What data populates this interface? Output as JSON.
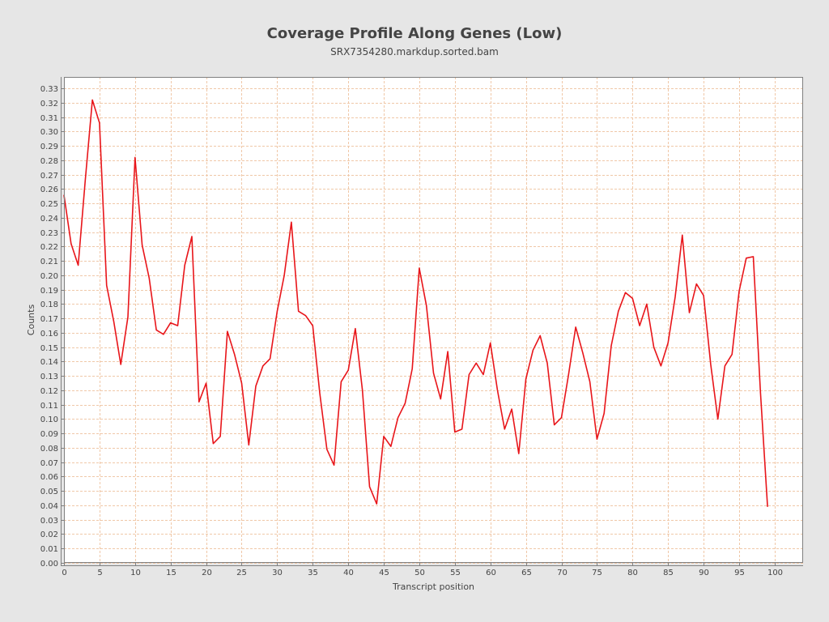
{
  "chart_data": {
    "type": "line",
    "title": "Coverage Profile Along Genes (Low)",
    "subtitle": "SRX7354280.markdup.sorted.bam",
    "xlabel": "Transcript position",
    "ylabel": "Counts",
    "xlim": [
      0,
      104
    ],
    "ylim": [
      0,
      0.338
    ],
    "x_ticks": [
      0,
      5,
      10,
      15,
      20,
      25,
      30,
      35,
      40,
      45,
      50,
      55,
      60,
      65,
      70,
      75,
      80,
      85,
      90,
      95,
      100
    ],
    "y_ticks": [
      0.0,
      0.01,
      0.02,
      0.03,
      0.04,
      0.05,
      0.06,
      0.07,
      0.08,
      0.09,
      0.1,
      0.11,
      0.12,
      0.13,
      0.14,
      0.15,
      0.16,
      0.17,
      0.18,
      0.19,
      0.2,
      0.21,
      0.22,
      0.23,
      0.24,
      0.25,
      0.26,
      0.27,
      0.28,
      0.29,
      0.3,
      0.31,
      0.32,
      0.33
    ],
    "grid": true,
    "line_color": "#e8151a",
    "grid_color": "#f0c8a8",
    "x": [
      0,
      1,
      2,
      3,
      4,
      5,
      6,
      7,
      8,
      9,
      10,
      11,
      12,
      13,
      14,
      15,
      16,
      17,
      18,
      19,
      20,
      21,
      22,
      23,
      24,
      25,
      26,
      27,
      28,
      29,
      30,
      31,
      32,
      33,
      34,
      35,
      36,
      37,
      38,
      39,
      40,
      41,
      42,
      43,
      44,
      45,
      46,
      47,
      48,
      49,
      50,
      51,
      52,
      53,
      54,
      55,
      56,
      57,
      58,
      59,
      60,
      61,
      62,
      63,
      64,
      65,
      66,
      67,
      68,
      69,
      70,
      71,
      72,
      73,
      74,
      75,
      76,
      77,
      78,
      79,
      80,
      81,
      82,
      83,
      84,
      85,
      86,
      87,
      88,
      89,
      90,
      91,
      92,
      93,
      94,
      95,
      96,
      97,
      98,
      99
    ],
    "series": [
      {
        "values": [
          0.256,
          0.222,
          0.207,
          0.266,
          0.322,
          0.306,
          0.193,
          0.168,
          0.138,
          0.171,
          0.282,
          0.221,
          0.198,
          0.162,
          0.159,
          0.167,
          0.165,
          0.207,
          0.227,
          0.112,
          0.125,
          0.083,
          0.088,
          0.161,
          0.145,
          0.125,
          0.082,
          0.123,
          0.137,
          0.142,
          0.175,
          0.2,
          0.237,
          0.175,
          0.172,
          0.165,
          0.118,
          0.079,
          0.068,
          0.126,
          0.134,
          0.163,
          0.12,
          0.053,
          0.041,
          0.088,
          0.081,
          0.101,
          0.111,
          0.135,
          0.205,
          0.179,
          0.132,
          0.114,
          0.147,
          0.091,
          0.093,
          0.131,
          0.139,
          0.131,
          0.153,
          0.12,
          0.093,
          0.107,
          0.076,
          0.128,
          0.148,
          0.158,
          0.139,
          0.096,
          0.101,
          0.131,
          0.164,
          0.146,
          0.126,
          0.086,
          0.104,
          0.151,
          0.175,
          0.188,
          0.184,
          0.165,
          0.18,
          0.15,
          0.137,
          0.153,
          0.185,
          0.228,
          0.174,
          0.194,
          0.186,
          0.138,
          0.1,
          0.137,
          0.145,
          0.189,
          0.212,
          0.213,
          0.119,
          0.039
        ]
      }
    ]
  }
}
